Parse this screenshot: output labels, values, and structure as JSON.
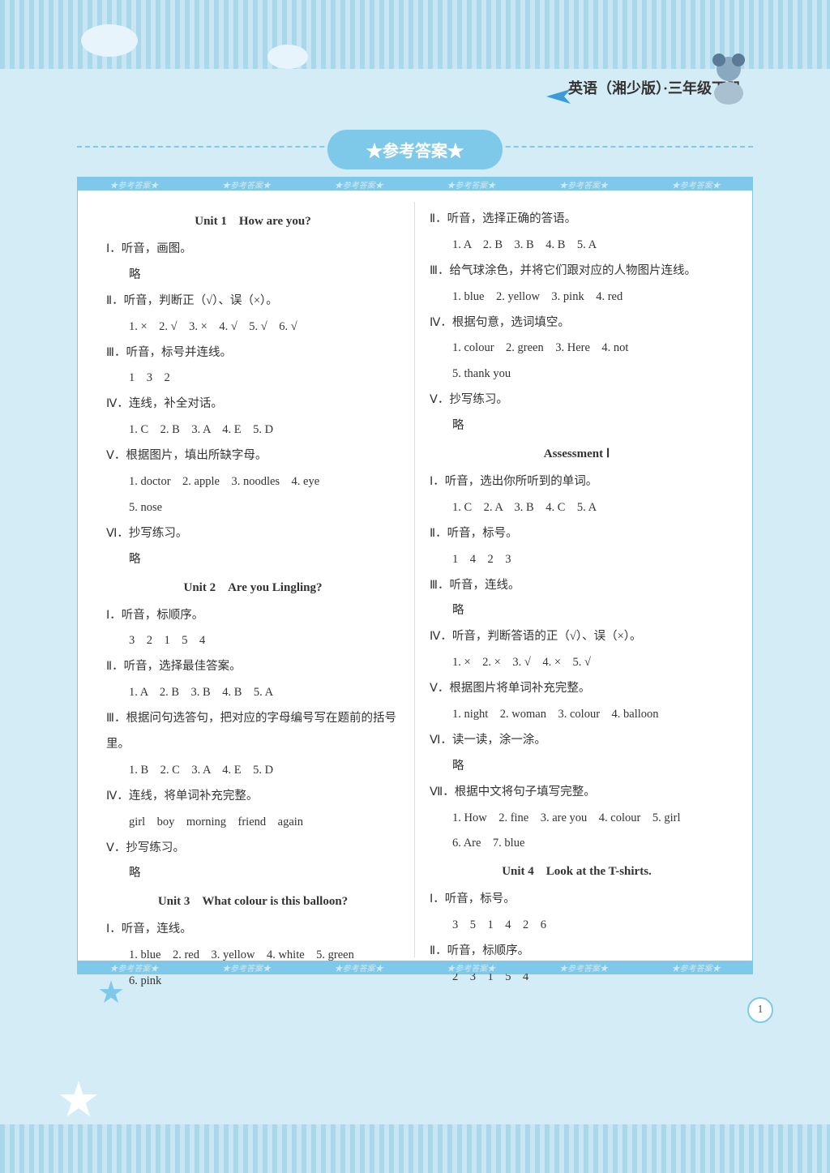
{
  "colors": {
    "accent": "#7ec9e9",
    "bg": "#d4ecf6",
    "text": "#333333"
  },
  "header": {
    "subject": "英语（湘少版）·三年级下册"
  },
  "title": "★参考答案★",
  "watermark": "★参考答案★",
  "page_number": "1",
  "left": [
    {
      "type": "unit",
      "text": "Unit 1　How are you?"
    },
    {
      "type": "sec",
      "text": "Ⅰ．听音，画图。"
    },
    {
      "type": "ans",
      "text": "略"
    },
    {
      "type": "sec",
      "text": "Ⅱ．听音，判断正（√）、误（×）。"
    },
    {
      "type": "ans",
      "text": "1. ×　2. √　3. ×　4. √　5. √　6. √"
    },
    {
      "type": "sec",
      "text": "Ⅲ．听音，标号并连线。"
    },
    {
      "type": "ans",
      "text": "1　3　2"
    },
    {
      "type": "sec",
      "text": "Ⅳ．连线，补全对话。"
    },
    {
      "type": "ans",
      "text": "1. C　2. B　3. A　4. E　5. D"
    },
    {
      "type": "sec",
      "text": "Ⅴ．根据图片，填出所缺字母。"
    },
    {
      "type": "ans",
      "text": "1. doctor　2. apple　3. noodles　4. eye"
    },
    {
      "type": "ans",
      "text": "5. nose"
    },
    {
      "type": "sec",
      "text": "Ⅵ．抄写练习。"
    },
    {
      "type": "ans",
      "text": "略"
    },
    {
      "type": "unit",
      "text": "Unit 2　Are you Lingling?"
    },
    {
      "type": "sec",
      "text": "Ⅰ．听音，标顺序。"
    },
    {
      "type": "ans",
      "text": "3　2　1　5　4"
    },
    {
      "type": "sec",
      "text": "Ⅱ．听音，选择最佳答案。"
    },
    {
      "type": "ans",
      "text": "1. A　2. B　3. B　4. B　5. A"
    },
    {
      "type": "sec_wrap",
      "text": "Ⅲ．根据问句选答句，把对应的字母编号写在题前的括号里。"
    },
    {
      "type": "ans",
      "text": "1. B　2. C　3. A　4. E　5. D"
    },
    {
      "type": "sec",
      "text": "Ⅳ．连线，将单词补充完整。"
    },
    {
      "type": "ans",
      "text": "girl　boy　morning　friend　again"
    },
    {
      "type": "sec",
      "text": "Ⅴ．抄写练习。"
    },
    {
      "type": "ans",
      "text": "略"
    },
    {
      "type": "unit",
      "text": "Unit 3　What colour is this balloon?"
    },
    {
      "type": "sec",
      "text": "Ⅰ．听音，连线。"
    },
    {
      "type": "ans",
      "text": "1. blue　2. red　3. yellow　4. white　5. green"
    },
    {
      "type": "ans",
      "text": "6. pink"
    }
  ],
  "right": [
    {
      "type": "sec",
      "text": "Ⅱ．听音，选择正确的答语。"
    },
    {
      "type": "ans",
      "text": "1. A　2. B　3. B　4. B　5. A"
    },
    {
      "type": "sec",
      "text": "Ⅲ．给气球涂色，并将它们跟对应的人物图片连线。"
    },
    {
      "type": "ans",
      "text": "1. blue　2. yellow　3. pink　4. red"
    },
    {
      "type": "sec",
      "text": "Ⅳ．根据句意，选词填空。"
    },
    {
      "type": "ans",
      "text": "1. colour　2. green　3. Here　4. not"
    },
    {
      "type": "ans",
      "text": "5. thank you"
    },
    {
      "type": "sec",
      "text": "Ⅴ．抄写练习。"
    },
    {
      "type": "ans",
      "text": "略"
    },
    {
      "type": "unit",
      "text": "Assessment Ⅰ"
    },
    {
      "type": "sec",
      "text": "Ⅰ．听音，选出你所听到的单词。"
    },
    {
      "type": "ans",
      "text": "1. C　2. A　3. B　4. C　5. A"
    },
    {
      "type": "sec",
      "text": "Ⅱ．听音，标号。"
    },
    {
      "type": "ans",
      "text": "1　4　2　3"
    },
    {
      "type": "sec",
      "text": "Ⅲ．听音，连线。"
    },
    {
      "type": "ans",
      "text": "略"
    },
    {
      "type": "sec",
      "text": "Ⅳ．听音，判断答语的正（√）、误（×）。"
    },
    {
      "type": "ans",
      "text": "1. ×　2. ×　3. √　4. ×　5. √"
    },
    {
      "type": "sec",
      "text": "Ⅴ．根据图片将单词补充完整。"
    },
    {
      "type": "ans",
      "text": "1. night　2. woman　3. colour　4. balloon"
    },
    {
      "type": "sec",
      "text": "Ⅵ．读一读，涂一涂。"
    },
    {
      "type": "ans",
      "text": "略"
    },
    {
      "type": "sec",
      "text": "Ⅶ．根据中文将句子填写完整。"
    },
    {
      "type": "ans",
      "text": "1. How　2. fine　3. are you　4. colour　5. girl"
    },
    {
      "type": "ans",
      "text": "6. Are　7. blue"
    },
    {
      "type": "unit",
      "text": "Unit 4　Look at the T-shirts."
    },
    {
      "type": "sec",
      "text": "Ⅰ．听音，标号。"
    },
    {
      "type": "ans",
      "text": "3　5　1　4　2　6"
    },
    {
      "type": "sec",
      "text": "Ⅱ．听音，标顺序。"
    },
    {
      "type": "ans",
      "text": "2　3　1　5　4"
    }
  ]
}
